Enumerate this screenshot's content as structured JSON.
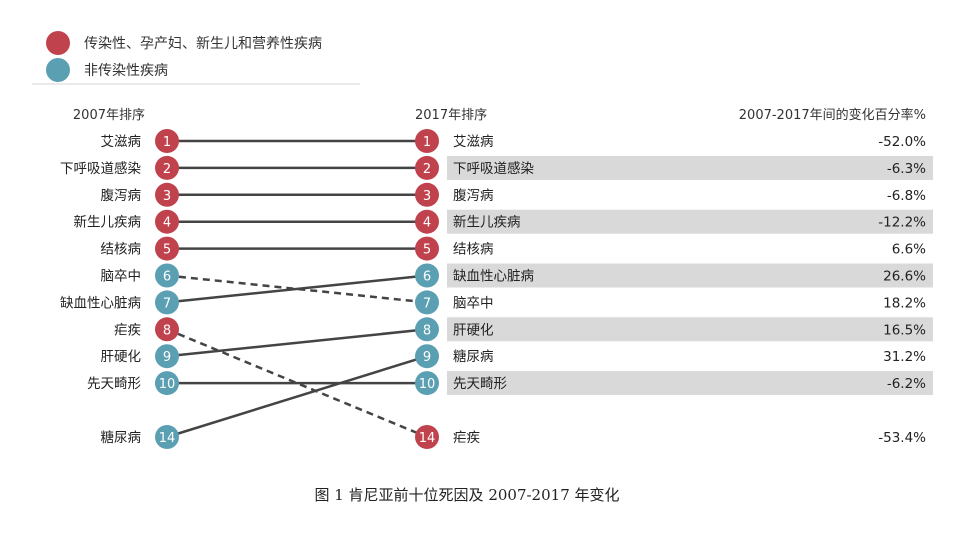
{
  "legend": [
    {
      "label": "传染性、孕产妇、新生儿和营养性疾病",
      "color": "#c0424d"
    },
    {
      "label": "非传染性疾病",
      "color": "#5b9fb3"
    }
  ],
  "headers": {
    "left": "2007年排序",
    "right": "2017年排序",
    "change": "2007-2017年间的变化百分率%"
  },
  "caption": "图 1  肯尼亚前十位死因及 2007-2017 年变化",
  "chart_data": {
    "type": "slope",
    "category_colors": {
      "communicable": "#c0424d",
      "noncommunicable": "#5b9fb3"
    },
    "left_column": [
      {
        "rank": 1,
        "name": "艾滋病",
        "category": "communicable"
      },
      {
        "rank": 2,
        "name": "下呼吸道感染",
        "category": "communicable"
      },
      {
        "rank": 3,
        "name": "腹泻病",
        "category": "communicable"
      },
      {
        "rank": 4,
        "name": "新生儿疾病",
        "category": "communicable"
      },
      {
        "rank": 5,
        "name": "结核病",
        "category": "communicable"
      },
      {
        "rank": 6,
        "name": "脑卒中",
        "category": "noncommunicable"
      },
      {
        "rank": 7,
        "name": "缺血性心脏病",
        "category": "noncommunicable"
      },
      {
        "rank": 8,
        "name": "疟疾",
        "category": "communicable"
      },
      {
        "rank": 9,
        "name": "肝硬化",
        "category": "noncommunicable"
      },
      {
        "rank": 10,
        "name": "先天畸形",
        "category": "noncommunicable"
      },
      {
        "rank": 14,
        "name": "糖尿病",
        "category": "noncommunicable"
      }
    ],
    "right_column": [
      {
        "rank": 1,
        "name": "艾滋病",
        "category": "communicable",
        "change": "-52.0%",
        "shaded": false
      },
      {
        "rank": 2,
        "name": "下呼吸道感染",
        "category": "communicable",
        "change": "-6.3%",
        "shaded": true
      },
      {
        "rank": 3,
        "name": "腹泻病",
        "category": "communicable",
        "change": "-6.8%",
        "shaded": false
      },
      {
        "rank": 4,
        "name": "新生儿疾病",
        "category": "communicable",
        "change": "-12.2%",
        "shaded": true
      },
      {
        "rank": 5,
        "name": "结核病",
        "category": "communicable",
        "change": "6.6%",
        "shaded": false
      },
      {
        "rank": 6,
        "name": "缺血性心脏病",
        "category": "noncommunicable",
        "change": "26.6%",
        "shaded": true
      },
      {
        "rank": 7,
        "name": "脑卒中",
        "category": "noncommunicable",
        "change": "18.2%",
        "shaded": false
      },
      {
        "rank": 8,
        "name": "肝硬化",
        "category": "noncommunicable",
        "change": "16.5%",
        "shaded": true
      },
      {
        "rank": 9,
        "name": "糖尿病",
        "category": "noncommunicable",
        "change": "31.2%",
        "shaded": false
      },
      {
        "rank": 10,
        "name": "先天畸形",
        "category": "noncommunicable",
        "change": "-6.2%",
        "shaded": true
      },
      {
        "rank": 14,
        "name": "疟疾",
        "category": "communicable",
        "change": "-53.4%",
        "shaded": false
      }
    ],
    "links": [
      {
        "from": 1,
        "to": 1,
        "style": "solid"
      },
      {
        "from": 2,
        "to": 2,
        "style": "solid"
      },
      {
        "from": 3,
        "to": 3,
        "style": "solid"
      },
      {
        "from": 4,
        "to": 4,
        "style": "solid"
      },
      {
        "from": 5,
        "to": 5,
        "style": "solid"
      },
      {
        "from": 6,
        "to": 7,
        "style": "dashed"
      },
      {
        "from": 7,
        "to": 6,
        "style": "solid"
      },
      {
        "from": 8,
        "to": 14,
        "style": "dashed"
      },
      {
        "from": 9,
        "to": 8,
        "style": "solid"
      },
      {
        "from": 10,
        "to": 10,
        "style": "solid"
      },
      {
        "from": 14,
        "to": 9,
        "style": "solid"
      }
    ]
  }
}
